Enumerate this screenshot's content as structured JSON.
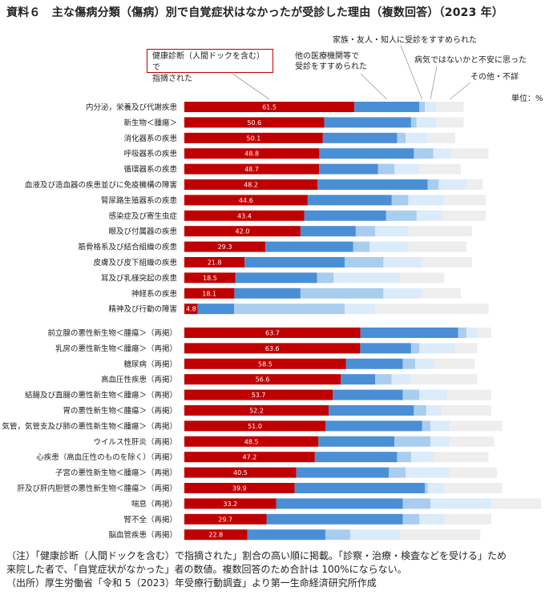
{
  "title": "資料６　主な傷病分類（傷病）別で自覚症状はなかったが受診した理由（複数回答）（2023 年）",
  "unit": "単位：%",
  "annotations": {
    "health_check": [
      "健康診断（人間ドックを含む）で",
      "指摘された"
    ],
    "other_medical": [
      "他の医療機関等で",
      "受診をすすめられた"
    ],
    "family": "家族・友人・知人に受診をすすめられた",
    "worried": "病気ではないかと不安に思った",
    "other": "その他・不詳"
  },
  "colors": {
    "health_check": "#c00000",
    "other_medical": "#4a8fd6",
    "family": "#a9cdef",
    "worried": "#dcebf9",
    "other": "#eeeeee"
  },
  "chart_data": {
    "type": "bar",
    "orientation": "horizontal",
    "stacked": true,
    "series_names": [
      "健康診断（人間ドックを含む）で指摘された",
      "他の医療機関等で受診をすすめられた",
      "家族・友人・知人に受診をすすめられた",
      "病気ではないかと不安に思った",
      "その他・不詳"
    ],
    "groups": [
      {
        "categories": [
          "内分泌，栄養及び代謝疾患",
          "新生物＜腫瘍＞",
          "消化器系の疾患",
          "呼吸器系の疾患",
          "循環器系の疾患",
          "血液及び造血器の疾患並びに免疫機構の障害",
          "腎尿路生殖器系の疾患",
          "感染症及び寄生虫症",
          "眼及び付属器の疾患",
          "筋骨格系及び結合組織の疾患",
          "皮膚及び皮下組織の疾患",
          "耳及び乳様突起の疾患",
          "神経系の疾患",
          "精神及び行動の障害"
        ],
        "values": [
          [
            61.5,
            23.5,
            2.0,
            4.0,
            10.0
          ],
          [
            50.6,
            31.4,
            2.0,
            7.0,
            10.0
          ],
          [
            50.1,
            26.9,
            3.0,
            8.0,
            10.0
          ],
          [
            48.8,
            34.2,
            7.0,
            6.5,
            13.5
          ],
          [
            48.7,
            21.3,
            6.0,
            9.0,
            15.0
          ],
          [
            48.2,
            39.8,
            4.0,
            10.0,
            6.0
          ],
          [
            44.6,
            30.4,
            6.0,
            13.0,
            15.0
          ],
          [
            43.4,
            29.6,
            11.0,
            9.0,
            16.0
          ],
          [
            42.0,
            20.0,
            7.0,
            12.0,
            23.0
          ],
          [
            29.3,
            31.7,
            6.0,
            14.0,
            21.0
          ],
          [
            21.8,
            36.2,
            14.0,
            14.0,
            18.0
          ],
          [
            18.5,
            29.5,
            6.0,
            24.0,
            16.0
          ],
          [
            18.1,
            23.9,
            30.0,
            14.0,
            14.0
          ],
          [
            4.8,
            13.2,
            40.0,
            11.0,
            41.0
          ]
        ]
      },
      {
        "categories": [
          "前立腺の悪性新生物＜腫瘍＞（再掲）",
          "乳房の悪性新生物＜腫瘍＞（再掲）",
          "糖尿病（再掲）",
          "高血圧性疾患（再掲）",
          "結腸及び直腸の悪性新生物＜腫瘍＞（再掲）",
          "胃の悪性新生物＜腫瘍＞（再掲）",
          "気管，気管支及び肺の悪性新生物＜腫瘍＞（再掲）",
          "ウイルス性肝炎（再掲）",
          "心疾患（高血圧性のものを除く）（再掲）",
          "子宮の悪性新生物＜腫瘍＞（再掲）",
          "肝及び肝内胆管の悪性新生物＜腫瘍＞（再掲）",
          "喘息（再掲）",
          "腎不全（再掲）",
          "脳血管疾患（再掲）"
        ],
        "values": [
          [
            63.7,
            35.3,
            3.0,
            4.0,
            5.0
          ],
          [
            63.6,
            18.4,
            3.0,
            13.0,
            8.0
          ],
          [
            58.5,
            20.5,
            4.5,
            7.0,
            14.5
          ],
          [
            56.6,
            12.4,
            6.0,
            7.0,
            24.0
          ],
          [
            53.7,
            25.3,
            6.0,
            10.0,
            16.0
          ],
          [
            52.2,
            30.8,
            4.5,
            5.5,
            18.0
          ],
          [
            51.0,
            35.0,
            3.0,
            7.0,
            19.0
          ],
          [
            48.5,
            27.5,
            13.0,
            7.0,
            16.0
          ],
          [
            47.2,
            29.8,
            5.0,
            8.0,
            20.0
          ],
          [
            40.5,
            33.5,
            6.0,
            16.0,
            17.0
          ],
          [
            39.9,
            47.1,
            1.0,
            6.0,
            21.0
          ],
          [
            33.2,
            45.8,
            10.0,
            22.0,
            18.0
          ],
          [
            29.7,
            49.3,
            6.0,
            9.0,
            17.0
          ],
          [
            22.8,
            28.2,
            9.0,
            18.0,
            29.0
          ]
        ]
      }
    ]
  },
  "notes": [
    "（注）「健康診断（人間ドックを含む）で指摘された」割合の高い順に掲載。「診察・治療・検査などを受ける」ため",
    "来院した者で、「自覚症状がなかった」者の数値。複数回答のため合計は 100%にならない。",
    "（出所）厚生労働省「令和 5（2023）年受療行動調査」より第一生命経済研究所作成"
  ]
}
